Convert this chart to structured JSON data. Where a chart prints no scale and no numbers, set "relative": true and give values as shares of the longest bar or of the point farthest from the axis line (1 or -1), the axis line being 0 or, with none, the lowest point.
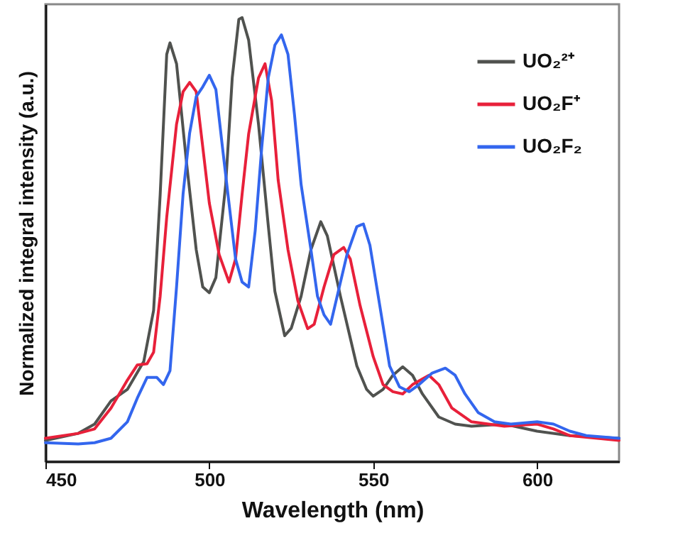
{
  "chart_data": {
    "type": "line",
    "xlabel": "Wavelength (nm)",
    "ylabel": "Normalized integral intensity (a.u.)",
    "relative": true,
    "xlim": [
      450,
      625
    ],
    "xticks": [
      450,
      500,
      550,
      600
    ],
    "tick_labels": "x",
    "legend": "top right",
    "grid": false,
    "line_style": "solid",
    "marker": "none",
    "series": [
      {
        "name": "UO₂²⁺",
        "color": "#50524f",
        "x": [
          450,
          460,
          465,
          470,
          475,
          480,
          483,
          485,
          487,
          488,
          490,
          493,
          496,
          498,
          500,
          502,
          505,
          507,
          509,
          510,
          512,
          515,
          518,
          520,
          523,
          525,
          528,
          531,
          534,
          536,
          540,
          545,
          548,
          550,
          553,
          556,
          559,
          562,
          565,
          570,
          575,
          580,
          590,
          600,
          610,
          625
        ],
        "values": [
          0.047,
          0.063,
          0.084,
          0.136,
          0.162,
          0.225,
          0.34,
          0.6,
          0.917,
          0.943,
          0.896,
          0.676,
          0.477,
          0.393,
          0.38,
          0.414,
          0.624,
          0.865,
          0.996,
          1.0,
          0.949,
          0.76,
          0.53,
          0.383,
          0.283,
          0.3,
          0.372,
          0.477,
          0.54,
          0.508,
          0.372,
          0.215,
          0.162,
          0.147,
          0.162,
          0.194,
          0.213,
          0.194,
          0.152,
          0.1,
          0.084,
          0.079,
          0.084,
          0.068,
          0.058,
          0.052
        ]
      },
      {
        "name": "UO₂F⁺",
        "color": "#e8203a",
        "x": [
          450,
          460,
          465,
          470,
          475,
          478,
          481,
          483,
          485,
          487,
          490,
          492,
          494,
          496,
          498,
          500,
          503,
          506,
          508,
          510,
          512,
          515,
          517,
          519,
          521,
          524,
          527,
          530,
          532,
          535,
          538,
          541,
          543,
          546,
          550,
          553,
          556,
          559,
          562,
          567,
          570,
          574,
          580,
          590,
          600,
          605,
          610,
          625
        ],
        "values": [
          0.052,
          0.063,
          0.073,
          0.12,
          0.183,
          0.217,
          0.22,
          0.246,
          0.372,
          0.55,
          0.76,
          0.833,
          0.854,
          0.833,
          0.708,
          0.582,
          0.466,
          0.404,
          0.456,
          0.602,
          0.738,
          0.864,
          0.896,
          0.813,
          0.634,
          0.477,
          0.362,
          0.299,
          0.309,
          0.393,
          0.466,
          0.482,
          0.456,
          0.351,
          0.236,
          0.173,
          0.157,
          0.152,
          0.173,
          0.194,
          0.173,
          0.12,
          0.089,
          0.079,
          0.084,
          0.073,
          0.058,
          0.047
        ]
      },
      {
        "name": "UO₂F₂",
        "color": "#3366ee",
        "x": [
          450,
          460,
          465,
          470,
          475,
          478,
          481,
          484,
          486,
          488,
          490,
          492,
          494,
          496,
          498,
          500,
          502,
          504,
          506,
          508,
          510,
          512,
          514,
          516,
          518,
          520,
          522,
          524,
          526,
          528,
          531,
          533,
          535,
          537,
          539,
          542,
          545,
          547,
          549,
          552,
          555,
          558,
          561,
          564,
          568,
          572,
          575,
          578,
          582,
          587,
          592,
          600,
          605,
          610,
          615,
          625
        ],
        "values": [
          0.042,
          0.039,
          0.042,
          0.052,
          0.089,
          0.142,
          0.189,
          0.189,
          0.173,
          0.204,
          0.393,
          0.603,
          0.74,
          0.822,
          0.844,
          0.87,
          0.838,
          0.708,
          0.582,
          0.456,
          0.404,
          0.393,
          0.52,
          0.708,
          0.865,
          0.938,
          0.961,
          0.917,
          0.78,
          0.624,
          0.477,
          0.372,
          0.33,
          0.309,
          0.372,
          0.466,
          0.529,
          0.535,
          0.487,
          0.351,
          0.215,
          0.168,
          0.157,
          0.173,
          0.199,
          0.21,
          0.194,
          0.152,
          0.11,
          0.089,
          0.084,
          0.089,
          0.084,
          0.068,
          0.058,
          0.052
        ]
      }
    ]
  }
}
